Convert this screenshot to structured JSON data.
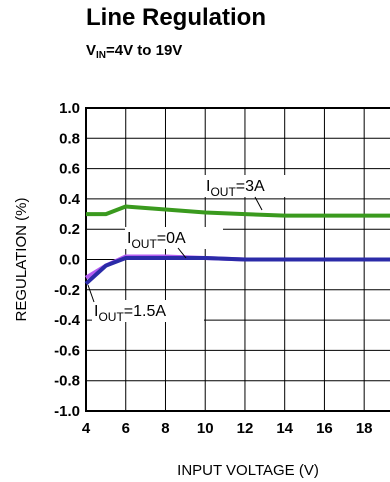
{
  "header": {
    "title": "Line Regulation",
    "subtitle_main": "V",
    "subtitle_sub": "IN",
    "subtitle_rest": "=4V to 19V"
  },
  "chart_data": {
    "type": "line",
    "title": "Line Regulation",
    "xlabel": "INPUT VOLTAGE (V)",
    "ylabel": "REGULATION  (%)",
    "xlim": [
      4,
      19.3
    ],
    "ylim": [
      -1.0,
      1.0
    ],
    "x_ticks": [
      4,
      6,
      8,
      10,
      12,
      14,
      16,
      18
    ],
    "y_ticks": [
      1.0,
      0.8,
      0.6,
      0.4,
      0.2,
      0.0,
      -0.2,
      -0.4,
      -0.6,
      -0.8,
      -1.0
    ],
    "x_tick_labels": [
      "4",
      "6",
      "8",
      "10",
      "12",
      "14",
      "16",
      "18"
    ],
    "y_tick_labels": [
      "1.0",
      "0.8",
      "0.6",
      "0.4",
      "0.2",
      "0.0",
      "-0.2",
      "-0.4",
      "-0.6",
      "-0.8",
      "-1.0"
    ],
    "grid": true,
    "series": [
      {
        "name": "IOUT=3A",
        "label_main": "I",
        "label_sub": "OUT",
        "label_rest": "=3A",
        "color": "#3a9a1e",
        "x": [
          4,
          5,
          6,
          8,
          10,
          12,
          14,
          16,
          18,
          19.3
        ],
        "y": [
          0.3,
          0.3,
          0.35,
          0.33,
          0.31,
          0.3,
          0.29,
          0.29,
          0.29,
          0.29
        ]
      },
      {
        "name": "IOUT=0A",
        "label_main": "I",
        "label_sub": "OUT",
        "label_rest": "=0A",
        "color": "#b35cf0",
        "x": [
          4,
          5,
          6,
          8,
          10,
          12,
          14,
          16,
          18,
          19.3
        ],
        "y": [
          -0.12,
          -0.04,
          0.02,
          0.02,
          0.01,
          0.0,
          0.0,
          0.0,
          0.0,
          0.0
        ]
      },
      {
        "name": "IOUT=1.5A",
        "label_main": "I",
        "label_sub": "OUT",
        "label_rest": "=1.5A",
        "color": "#2b2ba8",
        "x": [
          4,
          5,
          6,
          8,
          10,
          12,
          14,
          16,
          18,
          19.3
        ],
        "y": [
          -0.16,
          -0.04,
          0.01,
          0.01,
          0.01,
          0.0,
          0.0,
          0.0,
          0.0,
          0.0
        ]
      }
    ]
  }
}
